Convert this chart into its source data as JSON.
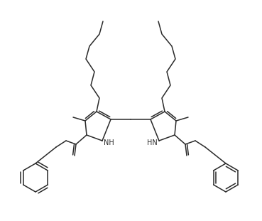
{
  "background": "#ffffff",
  "line_color": "#2a2a2a",
  "line_width": 1.1,
  "figsize": [
    3.69,
    3.11
  ],
  "dpi": 100
}
